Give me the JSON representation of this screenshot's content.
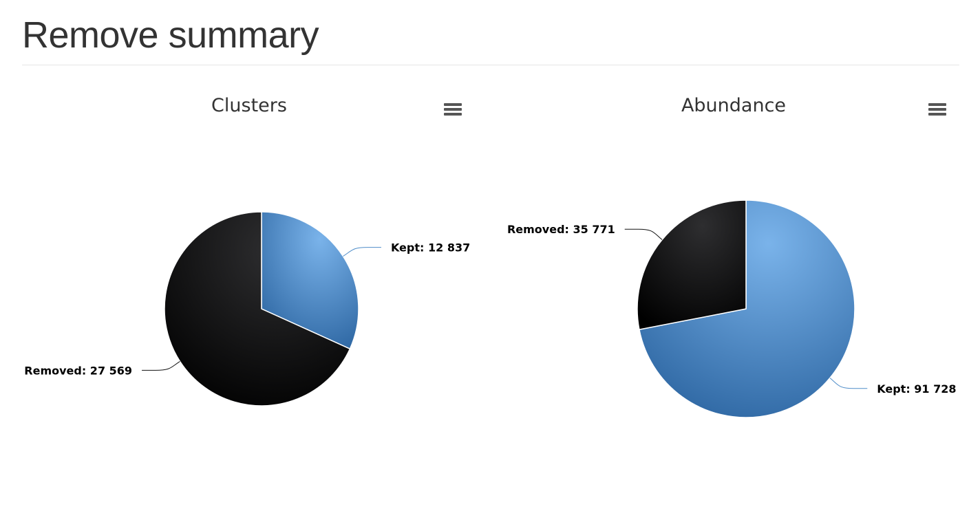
{
  "page": {
    "title": "Remove summary"
  },
  "colors": {
    "kept": "#4f8dc9",
    "removed": "#111111"
  },
  "icons": {
    "chart_menu": "hamburger-menu-icon"
  },
  "chart_data": [
    {
      "type": "pie",
      "title": "Clusters",
      "slices": [
        {
          "name": "Kept",
          "value": 12837,
          "label": "Kept: 12 837",
          "color": "#4f8dc9"
        },
        {
          "name": "Removed",
          "value": 27569,
          "label": "Removed: 27 569",
          "color": "#111111"
        }
      ]
    },
    {
      "type": "pie",
      "title": "Abundance",
      "slices": [
        {
          "name": "Kept",
          "value": 91728,
          "label": "Kept: 91 728",
          "color": "#4f8dc9"
        },
        {
          "name": "Removed",
          "value": 35771,
          "label": "Removed: 35 771",
          "color": "#111111"
        }
      ]
    }
  ]
}
